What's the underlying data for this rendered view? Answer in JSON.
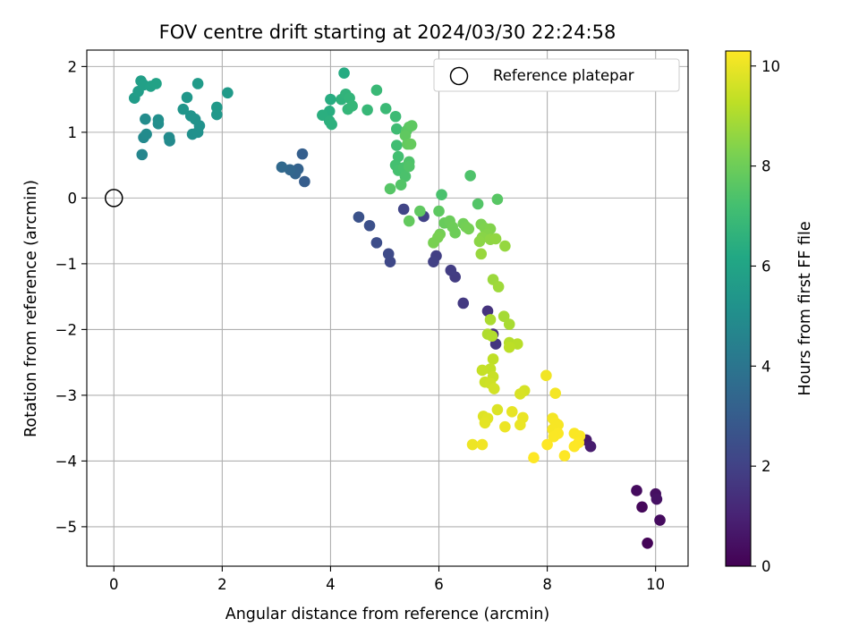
{
  "chart_data": {
    "type": "scatter",
    "title": "FOV centre drift starting at 2024/03/30 22:24:58",
    "xlabel": "Angular distance from reference (arcmin)",
    "ylabel": "Rotation from reference (arcmin)",
    "xlim": [
      -0.5,
      10.6
    ],
    "ylim": [
      -5.6,
      2.25
    ],
    "xticks": [
      0,
      2,
      4,
      6,
      8,
      10
    ],
    "yticks": [
      -5,
      -4,
      -3,
      -2,
      -1,
      0,
      1,
      2
    ],
    "xtick_labels": [
      "0",
      "2",
      "4",
      "6",
      "8",
      "10"
    ],
    "ytick_labels": [
      "−5",
      "−4",
      "−3",
      "−2",
      "−1",
      "0",
      "1",
      "2"
    ],
    "grid": true,
    "colormap": "viridis",
    "colorbar": {
      "label": "Hours from first FF file",
      "min": 0,
      "max": 10.3,
      "ticks": [
        0,
        2,
        4,
        6,
        8,
        10
      ],
      "tick_labels": [
        "0",
        "2",
        "4",
        "6",
        "8",
        "10"
      ]
    },
    "legend": {
      "position": "top-right",
      "entries": [
        {
          "label": "Reference platepar",
          "marker": "open-circle"
        }
      ]
    },
    "reference_point": {
      "x": 0,
      "y": 0
    },
    "series": [
      {
        "points": [
          {
            "x": 9.65,
            "y": -4.45,
            "h": 0.3
          },
          {
            "x": 9.75,
            "y": -4.7,
            "h": 0.2
          },
          {
            "x": 9.85,
            "y": -5.25,
            "h": 0.1
          },
          {
            "x": 10.0,
            "y": -4.5,
            "h": 0.4
          },
          {
            "x": 10.02,
            "y": -4.58,
            "h": 0.5
          },
          {
            "x": 10.08,
            "y": -4.9,
            "h": 0.3
          },
          {
            "x": 8.72,
            "y": -3.68,
            "h": 0.7
          },
          {
            "x": 8.8,
            "y": -3.78,
            "h": 0.8
          },
          {
            "x": 6.9,
            "y": -1.72,
            "h": 1.5
          },
          {
            "x": 7.0,
            "y": -2.07,
            "h": 1.4
          },
          {
            "x": 7.05,
            "y": -2.22,
            "h": 1.6
          },
          {
            "x": 6.45,
            "y": -1.6,
            "h": 1.7
          },
          {
            "x": 6.3,
            "y": -1.2,
            "h": 1.8
          },
          {
            "x": 6.22,
            "y": -1.1,
            "h": 1.85
          },
          {
            "x": 5.95,
            "y": -0.88,
            "h": 1.9
          },
          {
            "x": 5.9,
            "y": -0.97,
            "h": 1.95
          },
          {
            "x": 5.72,
            "y": -0.28,
            "h": 2.0
          },
          {
            "x": 5.35,
            "y": -0.17,
            "h": 2.1
          },
          {
            "x": 5.1,
            "y": -0.97,
            "h": 2.2
          },
          {
            "x": 5.07,
            "y": -0.85,
            "h": 2.3
          },
          {
            "x": 4.85,
            "y": -0.68,
            "h": 2.4
          },
          {
            "x": 4.72,
            "y": -0.42,
            "h": 2.5
          },
          {
            "x": 4.52,
            "y": -0.29,
            "h": 2.6
          },
          {
            "x": 3.52,
            "y": 0.25,
            "h": 3.0
          },
          {
            "x": 3.48,
            "y": 0.67,
            "h": 3.1
          },
          {
            "x": 3.4,
            "y": 0.44,
            "h": 3.2
          },
          {
            "x": 3.35,
            "y": 0.37,
            "h": 3.3
          },
          {
            "x": 3.25,
            "y": 0.43,
            "h": 3.4
          },
          {
            "x": 3.1,
            "y": 0.47,
            "h": 3.5
          },
          {
            "x": 0.52,
            "y": 0.66,
            "h": 4.7
          },
          {
            "x": 0.55,
            "y": 0.92,
            "h": 4.8
          },
          {
            "x": 0.6,
            "y": 0.97,
            "h": 4.9
          },
          {
            "x": 1.03,
            "y": 0.87,
            "h": 4.85
          },
          {
            "x": 1.02,
            "y": 0.92,
            "h": 4.9
          },
          {
            "x": 0.58,
            "y": 1.2,
            "h": 4.95
          },
          {
            "x": 0.82,
            "y": 1.13,
            "h": 5.0
          },
          {
            "x": 0.82,
            "y": 1.19,
            "h": 5.05
          },
          {
            "x": 1.45,
            "y": 0.97,
            "h": 5.1
          },
          {
            "x": 1.55,
            "y": 1.0,
            "h": 5.15
          },
          {
            "x": 1.58,
            "y": 1.1,
            "h": 5.2
          },
          {
            "x": 1.5,
            "y": 1.2,
            "h": 5.25
          },
          {
            "x": 1.42,
            "y": 1.25,
            "h": 5.3
          },
          {
            "x": 1.28,
            "y": 1.35,
            "h": 5.35
          },
          {
            "x": 1.35,
            "y": 1.53,
            "h": 5.4
          },
          {
            "x": 1.9,
            "y": 1.27,
            "h": 5.45
          },
          {
            "x": 1.9,
            "y": 1.38,
            "h": 5.5
          },
          {
            "x": 2.1,
            "y": 1.6,
            "h": 5.55
          },
          {
            "x": 1.55,
            "y": 1.74,
            "h": 5.6
          },
          {
            "x": 0.38,
            "y": 1.52,
            "h": 5.65
          },
          {
            "x": 0.45,
            "y": 1.62,
            "h": 5.7
          },
          {
            "x": 0.5,
            "y": 1.78,
            "h": 5.75
          },
          {
            "x": 0.55,
            "y": 1.72,
            "h": 5.8
          },
          {
            "x": 0.68,
            "y": 1.7,
            "h": 5.85
          },
          {
            "x": 0.78,
            "y": 1.74,
            "h": 5.9
          },
          {
            "x": 4.25,
            "y": 1.9,
            "h": 6.3
          },
          {
            "x": 4.0,
            "y": 1.5,
            "h": 6.35
          },
          {
            "x": 3.98,
            "y": 1.32,
            "h": 6.4
          },
          {
            "x": 3.85,
            "y": 1.26,
            "h": 6.45
          },
          {
            "x": 3.98,
            "y": 1.17,
            "h": 6.5
          },
          {
            "x": 4.02,
            "y": 1.12,
            "h": 6.55
          },
          {
            "x": 4.2,
            "y": 1.5,
            "h": 6.6
          },
          {
            "x": 4.28,
            "y": 1.58,
            "h": 6.65
          },
          {
            "x": 4.35,
            "y": 1.52,
            "h": 6.7
          },
          {
            "x": 4.32,
            "y": 1.35,
            "h": 6.75
          },
          {
            "x": 4.4,
            "y": 1.4,
            "h": 6.8
          },
          {
            "x": 4.68,
            "y": 1.34,
            "h": 6.85
          },
          {
            "x": 4.85,
            "y": 1.64,
            "h": 6.9
          },
          {
            "x": 5.02,
            "y": 1.36,
            "h": 6.95
          },
          {
            "x": 5.2,
            "y": 1.24,
            "h": 7.0
          },
          {
            "x": 5.22,
            "y": 1.05,
            "h": 7.05
          },
          {
            "x": 5.22,
            "y": 0.8,
            "h": 7.1
          },
          {
            "x": 5.25,
            "y": 0.63,
            "h": 7.15
          },
          {
            "x": 5.2,
            "y": 0.5,
            "h": 7.2
          },
          {
            "x": 5.25,
            "y": 0.42,
            "h": 7.25
          },
          {
            "x": 5.35,
            "y": 0.46,
            "h": 7.3
          },
          {
            "x": 5.38,
            "y": 0.33,
            "h": 7.35
          },
          {
            "x": 5.45,
            "y": 0.55,
            "h": 7.4
          },
          {
            "x": 5.45,
            "y": 0.48,
            "h": 7.45
          },
          {
            "x": 5.3,
            "y": 0.2,
            "h": 7.5
          },
          {
            "x": 5.1,
            "y": 0.14,
            "h": 7.55
          },
          {
            "x": 5.4,
            "y": 1.02,
            "h": 7.6
          },
          {
            "x": 5.45,
            "y": 1.08,
            "h": 7.65
          },
          {
            "x": 5.5,
            "y": 1.1,
            "h": 7.7
          },
          {
            "x": 5.38,
            "y": 0.95,
            "h": 7.75
          },
          {
            "x": 5.42,
            "y": 0.82,
            "h": 7.8
          },
          {
            "x": 5.48,
            "y": 0.82,
            "h": 7.85
          },
          {
            "x": 6.58,
            "y": 0.34,
            "h": 7.4
          },
          {
            "x": 6.05,
            "y": 0.05,
            "h": 7.3
          },
          {
            "x": 6.72,
            "y": -0.09,
            "h": 7.5
          },
          {
            "x": 7.08,
            "y": -0.02,
            "h": 7.6
          },
          {
            "x": 6.0,
            "y": -0.2,
            "h": 7.7
          },
          {
            "x": 5.65,
            "y": -0.2,
            "h": 7.75
          },
          {
            "x": 5.45,
            "y": -0.35,
            "h": 7.8
          },
          {
            "x": 6.1,
            "y": -0.38,
            "h": 7.9
          },
          {
            "x": 6.2,
            "y": -0.35,
            "h": 7.95
          },
          {
            "x": 6.25,
            "y": -0.44,
            "h": 8.0
          },
          {
            "x": 6.3,
            "y": -0.53,
            "h": 8.0
          },
          {
            "x": 6.45,
            "y": -0.39,
            "h": 8.05
          },
          {
            "x": 6.5,
            "y": -0.44,
            "h": 8.1
          },
          {
            "x": 6.55,
            "y": -0.47,
            "h": 8.15
          },
          {
            "x": 6.02,
            "y": -0.55,
            "h": 8.15
          },
          {
            "x": 5.98,
            "y": -0.6,
            "h": 8.2
          },
          {
            "x": 5.9,
            "y": -0.68,
            "h": 8.2
          },
          {
            "x": 6.78,
            "y": -0.4,
            "h": 8.25
          },
          {
            "x": 6.85,
            "y": -0.46,
            "h": 8.3
          },
          {
            "x": 6.95,
            "y": -0.47,
            "h": 8.35
          },
          {
            "x": 6.9,
            "y": -0.55,
            "h": 8.4
          },
          {
            "x": 6.8,
            "y": -0.6,
            "h": 8.45
          },
          {
            "x": 6.75,
            "y": -0.66,
            "h": 8.5
          },
          {
            "x": 6.95,
            "y": -0.63,
            "h": 8.55
          },
          {
            "x": 7.05,
            "y": -0.62,
            "h": 8.6
          },
          {
            "x": 7.22,
            "y": -0.73,
            "h": 8.65
          },
          {
            "x": 6.78,
            "y": -0.85,
            "h": 8.7
          },
          {
            "x": 7.0,
            "y": -1.24,
            "h": 8.75
          },
          {
            "x": 7.1,
            "y": -1.35,
            "h": 8.8
          },
          {
            "x": 7.2,
            "y": -1.8,
            "h": 8.9
          },
          {
            "x": 7.3,
            "y": -1.92,
            "h": 8.95
          },
          {
            "x": 6.95,
            "y": -1.85,
            "h": 9.0
          },
          {
            "x": 6.9,
            "y": -2.07,
            "h": 9.05
          },
          {
            "x": 6.98,
            "y": -2.1,
            "h": 9.1
          },
          {
            "x": 7.3,
            "y": -2.2,
            "h": 9.15
          },
          {
            "x": 7.45,
            "y": -2.22,
            "h": 9.2
          },
          {
            "x": 7.3,
            "y": -2.27,
            "h": 9.25
          },
          {
            "x": 7.0,
            "y": -2.45,
            "h": 9.3
          },
          {
            "x": 6.95,
            "y": -2.6,
            "h": 9.35
          },
          {
            "x": 6.8,
            "y": -2.62,
            "h": 9.4
          },
          {
            "x": 7.0,
            "y": -2.72,
            "h": 9.45
          },
          {
            "x": 6.85,
            "y": -2.8,
            "h": 9.5
          },
          {
            "x": 6.95,
            "y": -2.82,
            "h": 9.55
          },
          {
            "x": 7.02,
            "y": -2.9,
            "h": 9.6
          },
          {
            "x": 7.58,
            "y": -2.93,
            "h": 9.65
          },
          {
            "x": 7.5,
            "y": -2.98,
            "h": 9.7
          },
          {
            "x": 7.08,
            "y": -3.22,
            "h": 9.75
          },
          {
            "x": 6.82,
            "y": -3.32,
            "h": 9.8
          },
          {
            "x": 6.9,
            "y": -3.35,
            "h": 9.85
          },
          {
            "x": 6.85,
            "y": -3.42,
            "h": 9.9
          },
          {
            "x": 7.35,
            "y": -3.25,
            "h": 9.95
          },
          {
            "x": 7.55,
            "y": -3.34,
            "h": 10.0
          },
          {
            "x": 7.5,
            "y": -3.45,
            "h": 10.0
          },
          {
            "x": 7.22,
            "y": -3.48,
            "h": 10.05
          },
          {
            "x": 6.62,
            "y": -3.75,
            "h": 10.05
          },
          {
            "x": 6.8,
            "y": -3.75,
            "h": 10.1
          },
          {
            "x": 7.98,
            "y": -2.7,
            "h": 10.1
          },
          {
            "x": 8.15,
            "y": -2.97,
            "h": 10.15
          },
          {
            "x": 8.1,
            "y": -3.35,
            "h": 10.15
          },
          {
            "x": 8.15,
            "y": -3.42,
            "h": 10.2
          },
          {
            "x": 8.2,
            "y": -3.45,
            "h": 10.2
          },
          {
            "x": 8.1,
            "y": -3.52,
            "h": 10.2
          },
          {
            "x": 8.2,
            "y": -3.58,
            "h": 10.25
          },
          {
            "x": 8.12,
            "y": -3.63,
            "h": 10.25
          },
          {
            "x": 8.5,
            "y": -3.58,
            "h": 10.25
          },
          {
            "x": 8.6,
            "y": -3.62,
            "h": 10.25
          },
          {
            "x": 8.5,
            "y": -3.78,
            "h": 10.3
          },
          {
            "x": 8.58,
            "y": -3.72,
            "h": 10.3
          },
          {
            "x": 8.0,
            "y": -3.75,
            "h": 10.3
          },
          {
            "x": 8.32,
            "y": -3.92,
            "h": 10.3
          },
          {
            "x": 7.75,
            "y": -3.95,
            "h": 10.3
          }
        ]
      }
    ]
  }
}
